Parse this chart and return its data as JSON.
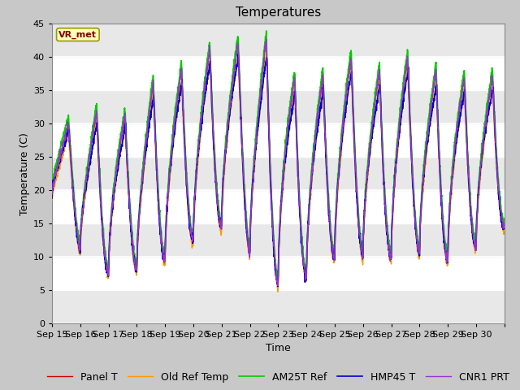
{
  "title": "Temperatures",
  "xlabel": "Time",
  "ylabel": "Temperature (C)",
  "annotation": "VR_met",
  "ylim": [
    0,
    45
  ],
  "n_days": 16,
  "x_tick_labels": [
    "Sep 15",
    "Sep 16",
    "Sep 17",
    "Sep 18",
    "Sep 19",
    "Sep 20",
    "Sep 21",
    "Sep 22",
    "Sep 23",
    "Sep 24",
    "Sep 25",
    "Sep 26",
    "Sep 27",
    "Sep 28",
    "Sep 29",
    "Sep 30"
  ],
  "series_colors": [
    "#cc0000",
    "#ff9900",
    "#00cc00",
    "#0000cc",
    "#9933cc"
  ],
  "series_labels": [
    "Panel T",
    "Old Ref Temp",
    "AM25T Ref",
    "HMP45 T",
    "CNR1 PRT"
  ],
  "fig_bg": "#c8c8c8",
  "plot_bg": "#ffffff",
  "band_colors": [
    "#e8e8e8",
    "#ffffff"
  ],
  "title_fontsize": 11,
  "axis_fontsize": 9,
  "tick_fontsize": 8,
  "legend_fontsize": 9,
  "peak_envelope": [
    30,
    32,
    31,
    36,
    38,
    41,
    42,
    43,
    37,
    37,
    40,
    38,
    40,
    38,
    37,
    37
  ],
  "min_envelope": [
    15,
    7,
    8,
    8,
    11,
    14,
    15,
    6,
    6,
    8,
    12,
    8,
    12,
    9,
    10,
    13
  ]
}
